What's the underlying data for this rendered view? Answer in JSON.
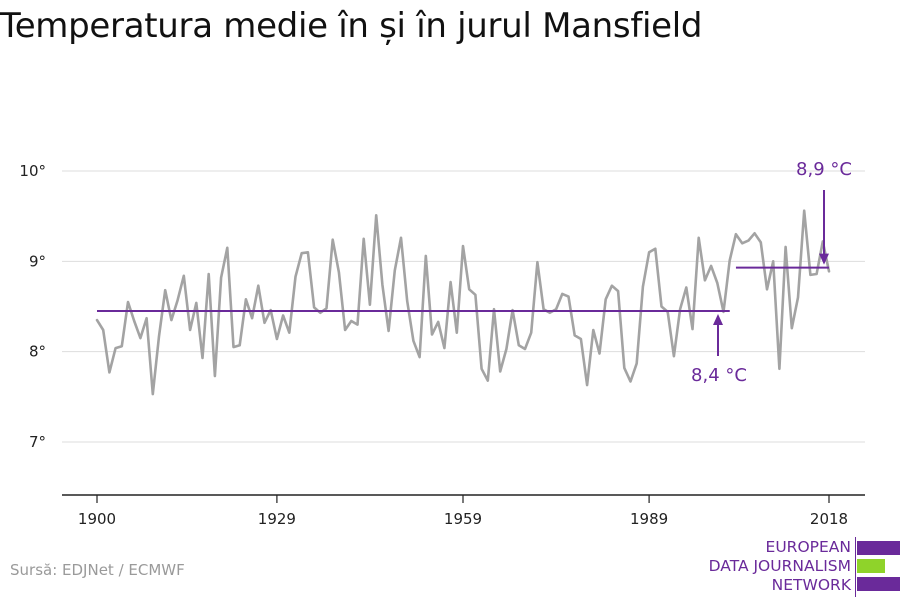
{
  "title": "Temperatura medie în și în jurul Mansfield",
  "source": "Sursă: EDJNet / ECMWF",
  "logo": {
    "lines": [
      "EUROPEAN",
      "DATA JOURNALISM",
      "NETWORK"
    ],
    "colors": {
      "purple": "#6a2a9a",
      "green": "#8fd32a"
    }
  },
  "colors": {
    "series": "#a3a3a3",
    "reference": "#6a2a9a",
    "grid": "#dddddd",
    "axis": "#222222"
  },
  "chart_data": {
    "type": "line",
    "title": "Temperatura medie în și în jurul Mansfield",
    "xlabel": "",
    "ylabel": "",
    "xlim": [
      1900,
      2018
    ],
    "ylim": [
      6.5,
      10.7
    ],
    "x_ticks": [
      1900,
      1929,
      1959,
      1989,
      2018
    ],
    "x_tick_labels": [
      "1900",
      "1929",
      "1959",
      "1989",
      "2018"
    ],
    "y_ticks": [
      7,
      8,
      9,
      10
    ],
    "y_tick_labels": [
      "7°",
      "8°",
      "9°",
      "10°"
    ],
    "grid": "horizontal",
    "series": [
      {
        "x": [
          1900,
          1901,
          1902,
          1903,
          1904,
          1905,
          1906,
          1907,
          1908,
          1909,
          1910,
          1911,
          1912,
          1913,
          1914,
          1915,
          1916,
          1917,
          1918,
          1919,
          1920,
          1921,
          1922,
          1923,
          1924,
          1925,
          1926,
          1927,
          1928,
          1929,
          1930,
          1931,
          1932,
          1933,
          1934,
          1935,
          1936,
          1937,
          1938,
          1939,
          1940,
          1941,
          1942,
          1943,
          1944,
          1945,
          1946,
          1947,
          1948,
          1949,
          1950,
          1951,
          1952,
          1953,
          1954,
          1955,
          1956,
          1957,
          1958,
          1959,
          1960,
          1961,
          1962,
          1963,
          1964,
          1965,
          1966,
          1967,
          1968,
          1969,
          1970,
          1971,
          1972,
          1973,
          1974,
          1975,
          1976,
          1977,
          1978,
          1979,
          1980,
          1981,
          1982,
          1983,
          1984,
          1985,
          1986,
          1987,
          1988,
          1989,
          1990,
          1991,
          1992,
          1993,
          1994,
          1995,
          1996,
          1997,
          1998,
          1999,
          2000,
          2001,
          2002,
          2003,
          2004,
          2005,
          2006,
          2007,
          2008,
          2009,
          2010,
          2011,
          2012,
          2013,
          2014,
          2015,
          2016,
          2017,
          2018
        ],
        "values": [
          8.35,
          8.24,
          7.77,
          8.04,
          8.06,
          8.55,
          8.34,
          8.15,
          8.37,
          7.53,
          8.17,
          8.68,
          8.35,
          8.57,
          8.84,
          8.24,
          8.54,
          7.93,
          8.86,
          7.73,
          8.82,
          9.15,
          8.05,
          8.07,
          8.58,
          8.37,
          8.73,
          8.32,
          8.46,
          8.14,
          8.4,
          8.21,
          8.83,
          9.09,
          9.1,
          8.49,
          8.43,
          8.48,
          9.24,
          8.88,
          8.24,
          8.34,
          8.3,
          9.25,
          8.52,
          9.51,
          8.74,
          8.23,
          8.9,
          9.26,
          8.56,
          8.12,
          7.94,
          9.06,
          8.19,
          8.33,
          8.04,
          8.77,
          8.21,
          9.17,
          8.69,
          8.63,
          7.81,
          7.68,
          8.47,
          7.78,
          8.03,
          8.46,
          8.07,
          8.03,
          8.21,
          8.99,
          8.47,
          8.43,
          8.47,
          8.64,
          8.61,
          8.18,
          8.14,
          7.63,
          8.24,
          7.98,
          8.58,
          8.73,
          8.67,
          7.82,
          7.67,
          7.87,
          8.72,
          9.1,
          9.14,
          8.5,
          8.44,
          7.95,
          8.47,
          8.71,
          8.25,
          9.26,
          8.79,
          8.95,
          8.76,
          8.44,
          9.01,
          9.3,
          9.2,
          9.23,
          9.31,
          9.21,
          8.69,
          9.0,
          7.81,
          9.16,
          8.26,
          8.6,
          9.56,
          8.85,
          8.86,
          9.22,
          8.89
        ]
      }
    ],
    "annotations": [
      {
        "label": "8,4 °C",
        "value": 8.45,
        "from": 1900,
        "to": 2002
      },
      {
        "label": "8,9 °C",
        "value": 8.93,
        "from": 2003,
        "to": 2018
      }
    ]
  }
}
